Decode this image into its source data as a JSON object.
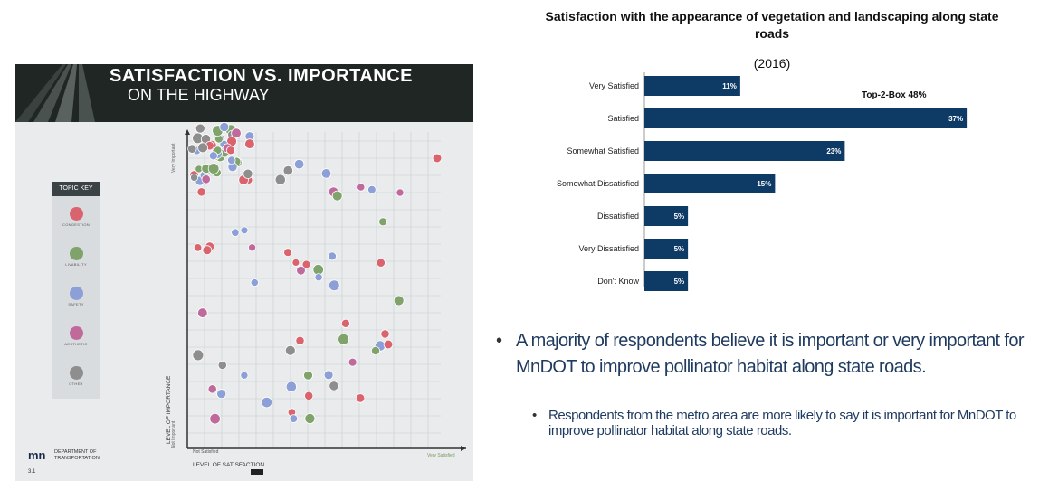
{
  "photo": {
    "title_line1": "SATISFACTION VS. IMPORTANCE",
    "title_line2": "ON THE HIGHWAY",
    "topic_key": {
      "title": "TOPIC KEY",
      "items": [
        {
          "label": "CONGESTION",
          "color": "#d9646e"
        },
        {
          "label": "LIVABILITY",
          "color": "#7fa36a"
        },
        {
          "label": "SAFETY",
          "color": "#8c9fd6"
        },
        {
          "label": "AESTHETIC",
          "color": "#c06a9b"
        },
        {
          "label": "OTHER",
          "color": "#8e8e8e"
        }
      ]
    },
    "y_axis_label": "LEVEL OF IMPORTANCE",
    "y_top_label": "Very Important",
    "y_bottom_label": "Not Important",
    "x_axis_label": "LEVEL OF SATISFACTION",
    "x_left_label": "Not Satisfied",
    "x_right_label": "Very Satisfied",
    "dept_line1": "DEPARTMENT OF",
    "dept_line2": "TRANSPORTATION",
    "dept_logo": "mn",
    "page_number": "3.1"
  },
  "chart_data": {
    "type": "bar",
    "orientation": "horizontal",
    "title": "Satisfaction with the appearance of vegetation and landscaping along state roads",
    "subtitle": "(2016)",
    "categories": [
      "Very Satisfied",
      "Satisfied",
      "Somewhat Satisfied",
      "Somewhat Dissatisfied",
      "Dissatisfied",
      "Very Dissatisfied",
      "Don't Know"
    ],
    "values": [
      11,
      37,
      23,
      15,
      5,
      5,
      5
    ],
    "value_labels": [
      "11%",
      "37%",
      "23%",
      "15%",
      "5%",
      "5%",
      "5%"
    ],
    "xlim": [
      0,
      40
    ],
    "bar_color": "#0e3a66",
    "annotation": "Top-2-Box 48%",
    "grid": false
  },
  "bullets": {
    "main": "A majority of respondents believe it is important or very important for MnDOT to improve pollinator habitat along state roads.",
    "sub": "Respondents from the metro area are more likely to say it is important for MnDOT to improve pollinator habitat along state roads."
  }
}
